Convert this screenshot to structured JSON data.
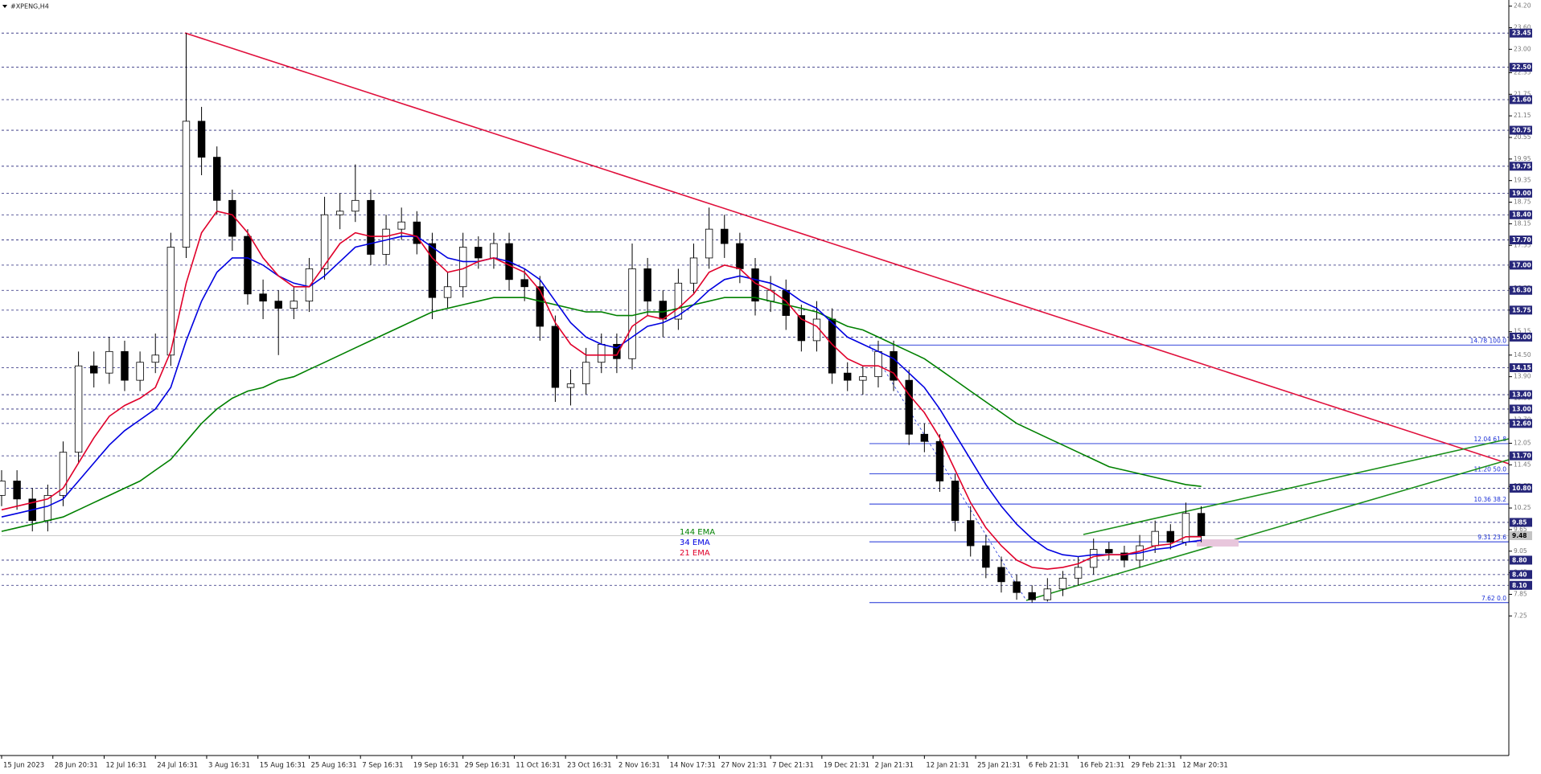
{
  "chart_data": {
    "type": "candlestick",
    "title": "#XPENG,H4",
    "xlim": [
      0,
      294
    ],
    "xticks": [
      {
        "value": 0,
        "label": "15 Jun 2023"
      },
      {
        "value": 10,
        "label": "28 Jun 20:31"
      },
      {
        "value": 20,
        "label": "12 Jul 16:31"
      },
      {
        "value": 30,
        "label": "24 Jul 16:31"
      },
      {
        "value": 40,
        "label": "3 Aug 16:31"
      },
      {
        "value": 50,
        "label": "15 Aug 16:31"
      },
      {
        "value": 60,
        "label": "25 Aug 16:31"
      },
      {
        "value": 70,
        "label": "7 Sep 16:31"
      },
      {
        "value": 80,
        "label": "19 Sep 16:31"
      },
      {
        "value": 90,
        "label": "29 Sep 16:31"
      },
      {
        "value": 100,
        "label": "11 Oct 16:31"
      },
      {
        "value": 110,
        "label": "23 Oct 16:31"
      },
      {
        "value": 120,
        "label": "2 Nov 16:31"
      },
      {
        "value": 130,
        "label": "14 Nov 17:31"
      },
      {
        "value": 140,
        "label": "27 Nov 21:31"
      },
      {
        "value": 150,
        "label": "7 Dec 21:31"
      },
      {
        "value": 160,
        "label": "19 Dec 21:31"
      },
      {
        "value": 170,
        "label": "2 Jan 21:31"
      },
      {
        "value": 180,
        "label": "12 Jan 21:31"
      },
      {
        "value": 190,
        "label": "25 Jan 21:31"
      },
      {
        "value": 200,
        "label": "6 Feb 21:31"
      },
      {
        "value": 210,
        "label": "16 Feb 21:31"
      },
      {
        "value": 220,
        "label": "29 Feb 21:31"
      },
      {
        "value": 230,
        "label": "12 Mar 20:31"
      }
    ],
    "ylim": [
      3.37,
      24.37
    ],
    "yticks": [
      {
        "value": 24.2,
        "label": "24.20"
      },
      {
        "value": 23.6,
        "label": "23.60"
      },
      {
        "value": 23,
        "label": "23.00"
      },
      22.35,
      21.75,
      21.15,
      20.55,
      19.95,
      19.35,
      18.75,
      18.15,
      17.55,
      16.95,
      16.35,
      15.75,
      15.15,
      {
        "value": 14.5,
        "label": "14.50"
      },
      {
        "value": 13.9,
        "label": "13.90"
      },
      {
        "value": 13.3,
        "label": "13.30"
      },
      {
        "value": 12.7,
        "label": "12.70"
      },
      12.05,
      11.45,
      10.85,
      10.25,
      9.65,
      9.05,
      8.45,
      7.85,
      7.25
    ],
    "x": [
      0,
      3,
      6,
      9,
      12,
      15,
      18,
      21,
      24,
      27,
      30,
      33,
      36,
      39,
      42,
      45,
      48,
      51,
      54,
      57,
      60,
      63,
      66,
      69,
      72,
      75,
      78,
      81,
      84,
      87,
      90,
      93,
      96,
      99,
      102,
      105,
      108,
      111,
      114,
      117,
      120,
      123,
      126,
      129,
      132,
      135,
      138,
      141,
      144,
      147,
      150,
      153,
      156,
      159,
      162,
      165,
      168,
      171,
      174,
      177,
      180,
      183,
      186,
      189,
      192,
      195,
      198,
      201,
      204,
      207,
      210,
      213,
      216,
      219,
      222,
      225,
      228,
      231,
      234
    ],
    "open": [
      10.6,
      11.0,
      10.5,
      9.9,
      10.6,
      11.8,
      14.2,
      14.0,
      14.6,
      13.8,
      14.3,
      14.5,
      17.5,
      21.0,
      20.0,
      18.8,
      17.8,
      16.2,
      16.0,
      15.8,
      16.0,
      16.9,
      18.4,
      18.5,
      18.8,
      17.3,
      18.0,
      18.2,
      17.6,
      16.1,
      16.4,
      17.5,
      17.2,
      17.6,
      16.6,
      16.4,
      15.3,
      13.6,
      13.7,
      14.3,
      14.8,
      14.4,
      16.9,
      16.0,
      15.5,
      16.5,
      17.2,
      18.0,
      17.6,
      16.9,
      16.0,
      16.3,
      15.6,
      14.9,
      15.5,
      14.0,
      13.8,
      13.9,
      14.6,
      13.8,
      12.3,
      12.1,
      11.0,
      9.9,
      9.2,
      8.6,
      8.2,
      7.9,
      7.7,
      8.0,
      8.3,
      8.6,
      9.1,
      9.0,
      8.8,
      9.2,
      9.6,
      9.3,
      10.1
    ],
    "high": [
      11.3,
      11.3,
      10.8,
      10.9,
      12.1,
      14.6,
      14.6,
      15.0,
      14.9,
      14.6,
      15.1,
      17.9,
      23.45,
      21.4,
      20.3,
      19.1,
      18.0,
      16.6,
      16.3,
      16.4,
      17.2,
      18.9,
      19.0,
      19.8,
      19.1,
      18.4,
      18.6,
      18.5,
      17.9,
      16.8,
      17.9,
      17.8,
      17.9,
      17.9,
      16.9,
      16.7,
      15.6,
      14.1,
      14.7,
      15.1,
      15.1,
      17.6,
      17.2,
      16.3,
      16.9,
      17.6,
      18.6,
      18.4,
      17.9,
      17.2,
      16.7,
      16.6,
      15.9,
      16.0,
      15.8,
      14.3,
      14.2,
      14.9,
      14.9,
      14.1,
      12.6,
      12.3,
      11.2,
      10.3,
      9.5,
      8.9,
      8.4,
      8.1,
      8.3,
      8.5,
      8.9,
      9.4,
      9.3,
      9.2,
      9.5,
      9.9,
      9.8,
      10.4,
      10.3
    ],
    "low": [
      10.3,
      10.2,
      9.6,
      9.6,
      10.3,
      11.5,
      13.6,
      13.7,
      13.5,
      13.5,
      14.0,
      14.2,
      17.2,
      19.5,
      18.4,
      17.4,
      15.9,
      15.5,
      14.5,
      15.5,
      15.7,
      16.6,
      18.0,
      18.2,
      17.0,
      17.0,
      17.7,
      17.3,
      15.5,
      15.8,
      16.1,
      16.9,
      16.9,
      16.3,
      16.0,
      14.9,
      13.2,
      13.1,
      13.4,
      14.0,
      14.0,
      14.1,
      15.6,
      15.0,
      15.2,
      16.2,
      16.9,
      17.2,
      16.5,
      15.6,
      15.7,
      15.2,
      14.6,
      14.6,
      13.7,
      13.5,
      13.4,
      13.6,
      13.5,
      12.0,
      11.8,
      10.7,
      9.6,
      8.9,
      8.3,
      7.9,
      7.7,
      7.62,
      7.65,
      7.8,
      8.1,
      8.4,
      8.8,
      8.6,
      8.6,
      9.0,
      9.1,
      9.2,
      9.3
    ],
    "close": [
      11.0,
      10.5,
      9.9,
      10.6,
      11.8,
      14.2,
      14.0,
      14.6,
      13.8,
      14.3,
      14.5,
      17.5,
      21.0,
      20.0,
      18.8,
      17.8,
      16.2,
      16.0,
      15.8,
      16.0,
      16.9,
      18.4,
      18.5,
      18.8,
      17.3,
      18.0,
      18.2,
      17.6,
      16.1,
      16.4,
      17.5,
      17.2,
      17.6,
      16.6,
      16.4,
      15.3,
      13.6,
      13.7,
      14.3,
      14.8,
      14.4,
      16.9,
      16.0,
      15.5,
      16.5,
      17.2,
      18.0,
      17.6,
      16.9,
      16.0,
      16.3,
      15.6,
      14.9,
      15.5,
      14.0,
      13.8,
      13.9,
      14.6,
      13.8,
      12.3,
      12.1,
      11.0,
      9.9,
      9.2,
      8.6,
      8.2,
      7.9,
      7.7,
      8.0,
      8.3,
      8.6,
      9.1,
      9.0,
      8.8,
      9.2,
      9.6,
      9.3,
      10.1,
      9.48
    ],
    "bull_color": "#ffffff",
    "bear_color": "#000000",
    "series": [
      {
        "name": "144 EMA",
        "color": "#008000",
        "values": [
          9.6,
          9.7,
          9.8,
          9.9,
          10.0,
          10.2,
          10.4,
          10.6,
          10.8,
          11.0,
          11.3,
          11.6,
          12.1,
          12.6,
          13.0,
          13.3,
          13.5,
          13.6,
          13.8,
          13.9,
          14.1,
          14.3,
          14.5,
          14.7,
          14.9,
          15.1,
          15.3,
          15.5,
          15.7,
          15.8,
          15.9,
          16.0,
          16.1,
          16.1,
          16.1,
          16.0,
          15.9,
          15.8,
          15.7,
          15.7,
          15.6,
          15.6,
          15.7,
          15.7,
          15.8,
          15.9,
          16.0,
          16.1,
          16.1,
          16.1,
          16.0,
          15.9,
          15.8,
          15.7,
          15.5,
          15.3,
          15.2,
          15.0,
          14.8,
          14.6,
          14.4,
          14.1,
          13.8,
          13.5,
          13.2,
          12.9,
          12.6,
          12.4,
          12.2,
          12.0,
          11.8,
          11.6,
          11.4,
          11.3,
          11.2,
          11.1,
          11.0,
          10.9,
          10.85
        ]
      },
      {
        "name": "34 EMA",
        "color": "#0000e0",
        "values": [
          10.0,
          10.1,
          10.2,
          10.3,
          10.5,
          11.0,
          11.5,
          12.0,
          12.4,
          12.7,
          13.0,
          13.6,
          14.9,
          16.0,
          16.8,
          17.2,
          17.2,
          17.0,
          16.7,
          16.5,
          16.4,
          16.7,
          17.1,
          17.5,
          17.6,
          17.7,
          17.8,
          17.8,
          17.5,
          17.2,
          17.1,
          17.1,
          17.2,
          17.1,
          16.9,
          16.6,
          16.0,
          15.4,
          15.0,
          14.8,
          14.7,
          15.0,
          15.3,
          15.4,
          15.6,
          15.9,
          16.3,
          16.6,
          16.7,
          16.6,
          16.5,
          16.3,
          16.0,
          15.8,
          15.4,
          15.0,
          14.8,
          14.6,
          14.4,
          14.0,
          13.6,
          13.0,
          12.3,
          11.6,
          10.9,
          10.3,
          9.8,
          9.4,
          9.1,
          8.95,
          8.9,
          8.95,
          8.95,
          8.95,
          9.0,
          9.1,
          9.15,
          9.3,
          9.35
        ]
      },
      {
        "name": "21 EMA",
        "color": "#e0002a",
        "values": [
          10.2,
          10.3,
          10.4,
          10.5,
          10.8,
          11.5,
          12.2,
          12.8,
          13.1,
          13.3,
          13.6,
          14.6,
          16.5,
          17.9,
          18.5,
          18.4,
          17.9,
          17.2,
          16.7,
          16.4,
          16.4,
          17.0,
          17.6,
          17.9,
          17.8,
          17.8,
          17.9,
          17.8,
          17.2,
          16.8,
          16.9,
          17.1,
          17.2,
          17.0,
          16.8,
          16.3,
          15.4,
          14.8,
          14.5,
          14.5,
          14.5,
          15.3,
          15.6,
          15.5,
          15.8,
          16.2,
          16.8,
          17.0,
          16.9,
          16.5,
          16.3,
          16.0,
          15.5,
          15.3,
          14.8,
          14.4,
          14.2,
          14.2,
          14.0,
          13.4,
          12.9,
          12.2,
          11.3,
          10.4,
          9.7,
          9.2,
          8.8,
          8.6,
          8.55,
          8.6,
          8.7,
          8.9,
          8.95,
          8.95,
          9.05,
          9.2,
          9.25,
          9.45,
          9.45
        ]
      }
    ],
    "hlines": {
      "color": "#26267a",
      "values": [
        23.45,
        22.5,
        21.6,
        20.75,
        19.75,
        19,
        18.4,
        17.7,
        17,
        16.3,
        15.75,
        15,
        14.15,
        13.4,
        13,
        12.6,
        11.7,
        10.8,
        9.85,
        8.8,
        8.4,
        8.1
      ],
      "value_labels": [
        "23.45",
        "22.50",
        "21.60",
        "20.75",
        "19.75",
        "19.00",
        "18.40",
        "17.70",
        "17.00",
        "16.30",
        "15.75",
        "15.00",
        "14.15",
        "13.40",
        "13.00",
        "12.60",
        "11.70",
        "10.80",
        "9.85",
        "8.80",
        "8.40",
        "8.10"
      ]
    },
    "last_price": 9.48,
    "fibo": {
      "color": "#1a2fd6",
      "levels": [
        {
          "value": 14.78,
          "label": "14.78 100.0"
        },
        {
          "value": 12.04,
          "label": "12.04 61.8"
        },
        {
          "value": 11.2,
          "label": "11.20 50.0"
        },
        {
          "value": 10.36,
          "label": "10.36 38.2"
        },
        {
          "value": 9.31,
          "label": "9.31 23.6"
        },
        {
          "value": 7.62,
          "label": "7.62 0.0"
        }
      ]
    }
  }
}
